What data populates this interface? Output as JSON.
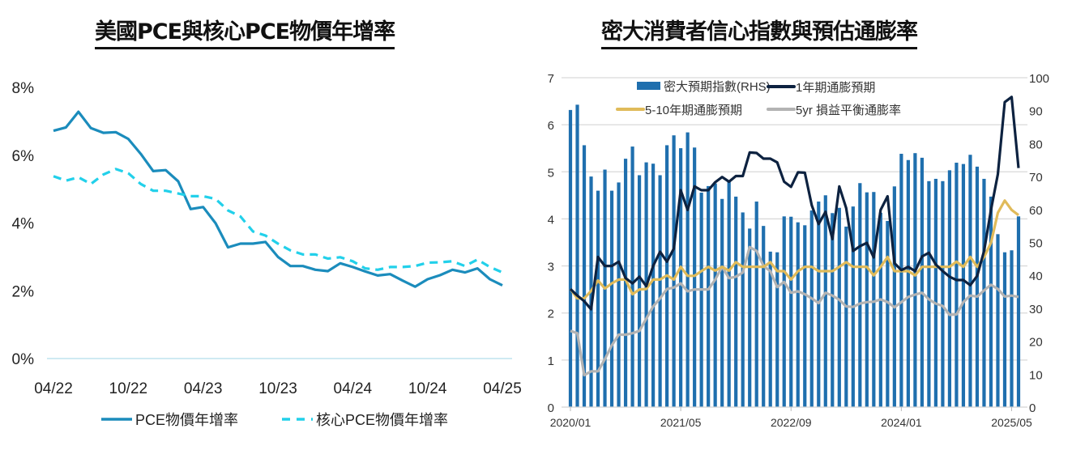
{
  "chart_data": [
    {
      "type": "line",
      "title": "美國PCE與核心PCE物價年增率",
      "x": [
        "04/22",
        "05/22",
        "06/22",
        "07/22",
        "08/22",
        "09/22",
        "10/22",
        "11/22",
        "12/22",
        "01/23",
        "02/23",
        "03/23",
        "04/23",
        "05/23",
        "06/23",
        "07/23",
        "08/23",
        "09/23",
        "10/23",
        "11/23",
        "12/23",
        "01/24",
        "02/24",
        "03/24",
        "04/24",
        "05/24",
        "06/24",
        "07/24",
        "08/24",
        "09/24",
        "10/24",
        "11/24",
        "12/24",
        "01/25",
        "02/25",
        "03/25",
        "04/25"
      ],
      "x_ticks": [
        "04/22",
        "10/22",
        "04/23",
        "10/23",
        "04/24",
        "10/24",
        "04/25"
      ],
      "y_ticks": [
        "0%",
        "2%",
        "4%",
        "6%",
        "8%"
      ],
      "ylim": [
        0,
        8
      ],
      "grid": false,
      "legend_placement": "bottom",
      "series": [
        {
          "name": "PCE物價年增率",
          "style": "solid",
          "color": "#1b8cbc",
          "values": [
            6.72,
            6.82,
            7.28,
            6.8,
            6.66,
            6.68,
            6.48,
            6.04,
            5.53,
            5.56,
            5.23,
            4.41,
            4.47,
            3.99,
            3.28,
            3.39,
            3.39,
            3.44,
            3.0,
            2.73,
            2.73,
            2.62,
            2.58,
            2.81,
            2.7,
            2.57,
            2.45,
            2.49,
            2.3,
            2.12,
            2.34,
            2.46,
            2.62,
            2.54,
            2.66,
            2.34,
            2.16
          ]
        },
        {
          "name": "核心PCE物價年增率",
          "style": "dashed",
          "color": "#22d0ea",
          "values": [
            5.38,
            5.25,
            5.35,
            5.15,
            5.43,
            5.59,
            5.47,
            5.15,
            4.95,
            4.95,
            4.87,
            4.79,
            4.79,
            4.71,
            4.37,
            4.19,
            3.75,
            3.63,
            3.39,
            3.19,
            3.07,
            3.07,
            2.95,
            2.99,
            2.87,
            2.66,
            2.62,
            2.7,
            2.7,
            2.73,
            2.83,
            2.84,
            2.87,
            2.73,
            2.92,
            2.7,
            2.54
          ]
        }
      ]
    },
    {
      "type": "bar+line",
      "title": "密大消費者信心指數與預估通膨率",
      "x_start": "2020/01",
      "x_end": "2025/06",
      "x_ticks": [
        "2020/01",
        "2021/05",
        "2022/09",
        "2024/01",
        "2025/05"
      ],
      "y_left_ticks": [
        "0",
        "1",
        "2",
        "3",
        "4",
        "5",
        "6",
        "7"
      ],
      "ylim_left": [
        0,
        7
      ],
      "y_right_ticks": [
        "0",
        "10",
        "20",
        "30",
        "40",
        "50",
        "60",
        "70",
        "80",
        "90",
        "100"
      ],
      "ylim_right": [
        0,
        100
      ],
      "grid": true,
      "legend_placement": "top",
      "bars": {
        "name": "密大預期指數(RHS)",
        "color": "#1f6fae",
        "axis": "right",
        "values": [
          90.2,
          91.8,
          79.5,
          70.0,
          65.7,
          72.1,
          65.7,
          68.2,
          75.4,
          79.1,
          70.4,
          74.3,
          73.9,
          70.4,
          79.5,
          82.5,
          78.6,
          83.4,
          78.8,
          65.1,
          67.1,
          67.9,
          63.2,
          68.7,
          63.9,
          59.1,
          54.2,
          62.4,
          55.0,
          47.2,
          47.0,
          57.9,
          57.8,
          56.1,
          55.2,
          59.7,
          62.4,
          64.3,
          58.9,
          60.5,
          54.8,
          60.9,
          68.0,
          65.2,
          65.3,
          59.0,
          56.5,
          67.0,
          76.9,
          75.0,
          77.1,
          75.7,
          68.6,
          69.3,
          68.6,
          71.9,
          74.2,
          73.8,
          76.6,
          73.0,
          69.3,
          63.9,
          52.5,
          47.0,
          47.6,
          57.9
        ]
      },
      "series": [
        {
          "name": "1年期通膨預期",
          "color": "#0d2240",
          "axis": "left",
          "values": [
            2.51,
            2.37,
            2.25,
            2.08,
            3.19,
            3.0,
            3.0,
            3.09,
            2.74,
            2.63,
            2.77,
            2.57,
            3.0,
            3.3,
            3.09,
            3.37,
            4.61,
            4.19,
            4.69,
            4.61,
            4.61,
            4.78,
            4.89,
            4.79,
            4.91,
            4.91,
            5.41,
            5.4,
            5.28,
            5.28,
            5.2,
            4.79,
            4.68,
            4.99,
            4.98,
            4.29,
            3.89,
            4.15,
            3.57,
            4.69,
            4.23,
            3.32,
            3.42,
            3.49,
            3.18,
            4.19,
            4.48,
            3.06,
            2.91,
            2.98,
            2.89,
            3.2,
            3.28,
            3.03,
            2.89,
            2.77,
            2.7,
            2.7,
            2.59,
            2.79,
            3.32,
            4.19,
            4.95,
            6.48,
            6.59,
            5.08
          ]
        },
        {
          "name": "5-10年期通膨預期",
          "color": "#e0bb5a",
          "axis": "left",
          "values": [
            2.51,
            2.31,
            2.31,
            2.47,
            2.69,
            2.52,
            2.63,
            2.71,
            2.71,
            2.4,
            2.5,
            2.51,
            2.71,
            2.71,
            2.8,
            2.71,
            2.98,
            2.79,
            2.79,
            2.89,
            2.98,
            2.9,
            2.98,
            2.9,
            3.08,
            2.98,
            2.98,
            2.98,
            2.98,
            3.08,
            2.89,
            2.89,
            2.71,
            2.89,
            2.98,
            2.98,
            2.89,
            2.89,
            2.89,
            2.98,
            3.08,
            2.98,
            2.98,
            2.98,
            2.8,
            2.98,
            3.19,
            2.89,
            2.89,
            2.89,
            2.8,
            2.98,
            2.98,
            2.98,
            2.98,
            2.98,
            3.09,
            2.98,
            3.19,
            2.98,
            3.19,
            3.49,
            4.13,
            4.39,
            4.19,
            4.08
          ]
        },
        {
          "name": "5yr 損益平衡通膨率",
          "color": "#b3b3b3",
          "axis": "left",
          "values": [
            1.62,
            1.57,
            0.68,
            0.76,
            0.76,
            1.02,
            1.31,
            1.54,
            1.54,
            1.57,
            1.62,
            1.88,
            2.14,
            2.31,
            2.51,
            2.54,
            2.63,
            2.46,
            2.5,
            2.5,
            2.5,
            2.71,
            2.98,
            2.74,
            2.77,
            2.86,
            3.4,
            3.32,
            3.0,
            2.89,
            2.55,
            2.66,
            2.43,
            2.46,
            2.4,
            2.31,
            2.21,
            2.43,
            2.37,
            2.28,
            2.14,
            2.13,
            2.2,
            2.23,
            2.24,
            2.29,
            2.23,
            2.12,
            2.23,
            2.34,
            2.39,
            2.43,
            2.29,
            2.2,
            2.15,
            1.96,
            1.97,
            2.23,
            2.37,
            2.35,
            2.48,
            2.6,
            2.51,
            2.35,
            2.37,
            2.34
          ]
        }
      ]
    }
  ]
}
